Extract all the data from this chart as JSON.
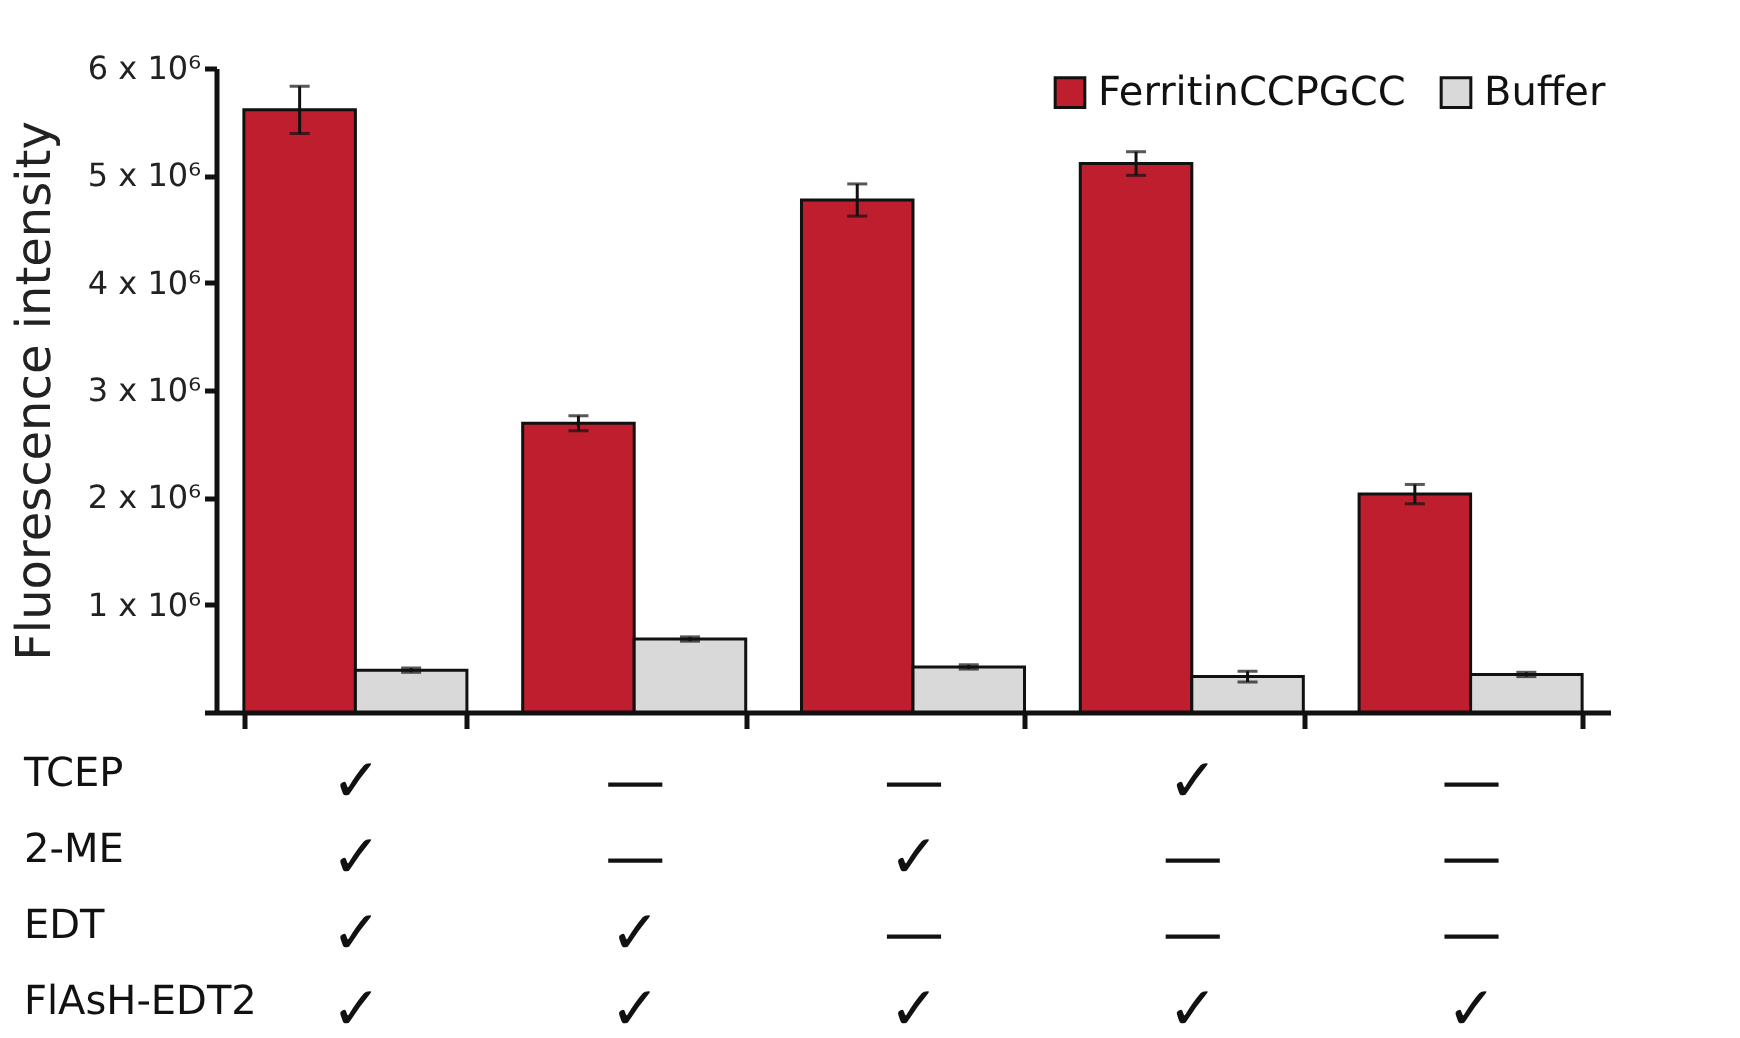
{
  "chart_data": {
    "type": "bar",
    "ylabel": "Fluorescence intensity",
    "categories": [
      "✓\n✓\n✓\n✓",
      "—\n—\n✓\n✓",
      "—\n✓\n—\n✓",
      "✓\n—\n—\n✓",
      "—\n—\n—\n✓"
    ],
    "series": [
      {
        "name": "FerritinCCPGCC",
        "color": "#be1e2d",
        "values": [
          5610000.0,
          2690000.0,
          4770000.0,
          5110000.0,
          2030000.0
        ],
        "errors": [
          220000.0,
          70000.0,
          150000.0,
          110000.0,
          90000.0
        ]
      },
      {
        "name": "Buffer",
        "color": "#d9d9d9",
        "values": [
          390000.0,
          680000.0,
          420000.0,
          330000.0,
          350000.0
        ],
        "errors": [
          20000.0,
          20000.0,
          20000.0,
          50000.0,
          20000.0
        ]
      }
    ],
    "ylim": [
      0,
      6000000
    ],
    "yticks": [
      {
        "value": 0,
        "label": null
      },
      {
        "value": 1000000,
        "label": "1 x 10⁶"
      },
      {
        "value": 2000000,
        "label": "2 x 10⁶"
      },
      {
        "value": 3000000,
        "label": "3 x 10⁶"
      },
      {
        "value": 4000000,
        "label": "4 x 10⁶"
      },
      {
        "value": 5000000,
        "label": "5 x 10⁶"
      },
      {
        "value": 6000000,
        "label": "6 x 10⁶"
      }
    ],
    "annotations": [
      "TCEP",
      "2-ME",
      "EDT",
      "FlAsH-EDT2"
    ],
    "legend": "top right",
    "grid": false
  }
}
